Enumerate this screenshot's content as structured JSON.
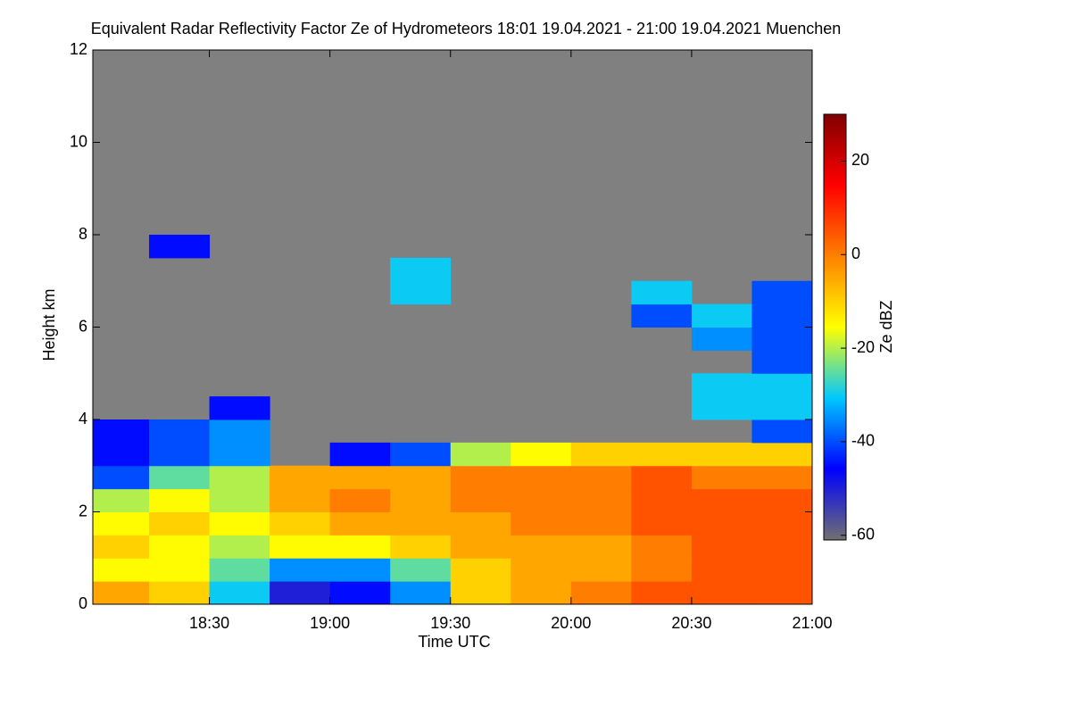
{
  "chart_data": {
    "type": "heatmap",
    "title": "Equivalent Radar Reflectivity Factor Ze of Hydrometeors   18:01 19.04.2021 - 21:00 19.04.2021 Muenchen",
    "xlabel": "Time UTC",
    "ylabel": "Height km",
    "colorbar_label": "Ze dBZ",
    "xlim": [
      18.0167,
      21
    ],
    "xticks": [
      {
        "value": 18.5,
        "label": "18:30"
      },
      {
        "value": 19,
        "label": "19:00"
      },
      {
        "value": 19.5,
        "label": "19:30"
      },
      {
        "value": 20,
        "label": "20:00"
      },
      {
        "value": 20.5,
        "label": "20:30"
      },
      {
        "value": 21,
        "label": "21:00"
      }
    ],
    "ylim": [
      0,
      12
    ],
    "yticks": [
      0,
      2,
      4,
      6,
      8,
      10,
      12
    ],
    "x_bins": [
      18.0167,
      18.25,
      18.5,
      18.75,
      19,
      19.25,
      19.5,
      19.75,
      20,
      20.25,
      20.5,
      20.75,
      21
    ],
    "y_bins": [
      0,
      0.5,
      1,
      1.5,
      2,
      2.5,
      3,
      3.5,
      4,
      4.5,
      5,
      5.5,
      6,
      6.5,
      7,
      7.5,
      8
    ],
    "z": [
      [
        -5,
        -10,
        -30,
        -50,
        -45,
        -35,
        -10,
        -5,
        0,
        5,
        5,
        5
      ],
      [
        -15,
        -15,
        -25,
        -35,
        -35,
        -25,
        -10,
        -5,
        -5,
        0,
        5,
        5
      ],
      [
        -10,
        -15,
        -20,
        -15,
        -15,
        -10,
        -5,
        -5,
        -5,
        0,
        5,
        5
      ],
      [
        -15,
        -10,
        -15,
        -10,
        -5,
        -5,
        -5,
        0,
        0,
        5,
        5,
        5
      ],
      [
        -20,
        -15,
        -20,
        -5,
        0,
        -5,
        0,
        0,
        0,
        5,
        5,
        5
      ],
      [
        -40,
        -25,
        -20,
        -5,
        -5,
        -5,
        0,
        0,
        0,
        5,
        0,
        0
      ],
      [
        -45,
        -40,
        -35,
        null,
        -45,
        -40,
        -20,
        -15,
        -10,
        -10,
        -10,
        -10
      ],
      [
        -45,
        -40,
        -35,
        null,
        null,
        null,
        null,
        null,
        null,
        null,
        null,
        -40
      ],
      [
        null,
        null,
        -45,
        null,
        null,
        null,
        null,
        null,
        null,
        null,
        -30,
        -30
      ],
      [
        null,
        null,
        null,
        null,
        null,
        null,
        null,
        null,
        null,
        null,
        -30,
        -30
      ],
      [
        null,
        null,
        null,
        null,
        null,
        null,
        null,
        null,
        null,
        null,
        null,
        -40
      ],
      [
        null,
        null,
        null,
        null,
        null,
        null,
        null,
        null,
        null,
        null,
        -35,
        -40
      ],
      [
        null,
        null,
        null,
        null,
        null,
        null,
        null,
        null,
        null,
        -40,
        -30,
        -40
      ],
      [
        null,
        null,
        null,
        null,
        null,
        -30,
        null,
        null,
        null,
        -30,
        null,
        -40
      ],
      [
        null,
        null,
        null,
        null,
        null,
        -30,
        null,
        null,
        null,
        null,
        null,
        null
      ],
      [
        null,
        -45,
        null,
        null,
        null,
        null,
        null,
        null,
        null,
        null,
        null,
        null
      ]
    ],
    "clim": [
      -61,
      30
    ],
    "colorbar_ticks": [
      -60,
      -40,
      -20,
      0,
      20
    ],
    "colormap": [
      "#707070",
      "#0000ff",
      "#00c8ff",
      "#ffff00",
      "#ff8000",
      "#ff0000",
      "#800000"
    ],
    "background": "#808080"
  }
}
